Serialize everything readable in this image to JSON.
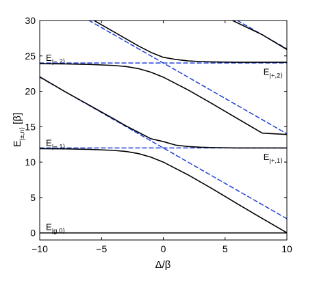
{
  "chart_data": {
    "type": "line",
    "xlabel": "Δ/β",
    "ylabel": {
      "base": "E",
      "sub": "|±,n⟩",
      "unit": "[β]"
    },
    "xlim": [
      -10,
      10
    ],
    "ylim": [
      -1,
      30
    ],
    "xticks": [
      -10,
      -5,
      0,
      5,
      10
    ],
    "yticks": [
      0,
      5,
      10,
      15,
      20,
      25,
      30
    ],
    "grid": false,
    "legend": "none",
    "colors": {
      "solid": "#000000",
      "dashed": "#1f3fd8"
    },
    "annotations": [
      {
        "base": "E",
        "sub": "|−,2⟩",
        "x": -9.5,
        "y": 24.3
      },
      {
        "base": "E",
        "sub": "|+,2⟩",
        "x": 8.1,
        "y": 22.3
      },
      {
        "base": "E",
        "sub": "|−,1⟩",
        "x": -9.5,
        "y": 12.3
      },
      {
        "base": "E",
        "sub": "|+,1⟩",
        "x": 8.1,
        "y": 10.3
      },
      {
        "base": "E",
        "sub": "|g,0⟩",
        "x": -9.5,
        "y": 0.4
      }
    ],
    "series": [
      {
        "style": "solid",
        "color": "#000000",
        "x": [
          -10,
          10
        ],
        "y": [
          0,
          0
        ]
      },
      {
        "style": "solid",
        "color": "#000000",
        "x": [
          -10,
          -8,
          -6,
          -4,
          -3,
          -2,
          -1,
          0,
          1,
          2,
          3,
          4,
          6,
          8,
          10
        ],
        "y": [
          11.9,
          11.87,
          11.8,
          11.65,
          11.5,
          11.2,
          10.7,
          10.0,
          9.1,
          8.2,
          7.2,
          6.2,
          4.1,
          2.05,
          0.02
        ]
      },
      {
        "style": "solid",
        "color": "#000000",
        "x": [
          -10,
          -8,
          -6,
          -4,
          -3,
          -2,
          -1,
          0,
          1,
          2,
          3,
          4,
          6,
          8,
          10
        ],
        "y": [
          22.05,
          20.0,
          18.05,
          16.1,
          15.1,
          14.2,
          13.3,
          12.9,
          12.4,
          12.2,
          12.1,
          12.05,
          12.0,
          12.0,
          12.0
        ]
      },
      {
        "style": "solid",
        "color": "#000000",
        "x": [
          -10,
          -8,
          -6,
          -4,
          -3,
          -2,
          -1,
          0,
          1,
          2,
          3,
          4,
          6,
          8,
          10
        ],
        "y": [
          23.9,
          23.87,
          23.8,
          23.65,
          23.5,
          23.2,
          22.7,
          22.0,
          21.1,
          20.2,
          19.2,
          18.2,
          16.15,
          14.1,
          13.9
        ]
      },
      {
        "style": "solid",
        "color": "#000000",
        "x": [
          -5.6,
          -4,
          -3,
          -2,
          -1,
          0,
          1,
          2,
          3,
          4,
          6,
          8,
          10
        ],
        "y": [
          30.0,
          28.4,
          27.4,
          26.4,
          25.5,
          24.8,
          24.5,
          24.3,
          24.2,
          24.15,
          24.1,
          24.1,
          24.1
        ]
      },
      {
        "style": "solid",
        "color": "#000000",
        "x": [
          5.6,
          8,
          10
        ],
        "y": [
          30.0,
          28.0,
          25.9
        ]
      },
      {
        "style": "dashed",
        "color": "#1f3fd8",
        "x": [
          -10,
          10
        ],
        "y": [
          12,
          12
        ]
      },
      {
        "style": "dashed",
        "color": "#1f3fd8",
        "x": [
          -10,
          10
        ],
        "y": [
          24,
          24
        ]
      },
      {
        "style": "dashed",
        "color": "#1f3fd8",
        "x": [
          -10,
          10
        ],
        "y": [
          22,
          2
        ]
      },
      {
        "style": "dashed",
        "color": "#1f3fd8",
        "x": [
          -6,
          10
        ],
        "y": [
          30,
          14
        ]
      },
      {
        "style": "dashed",
        "color": "#1f3fd8",
        "x": [
          6,
          10
        ],
        "y": [
          30,
          26
        ]
      }
    ]
  }
}
